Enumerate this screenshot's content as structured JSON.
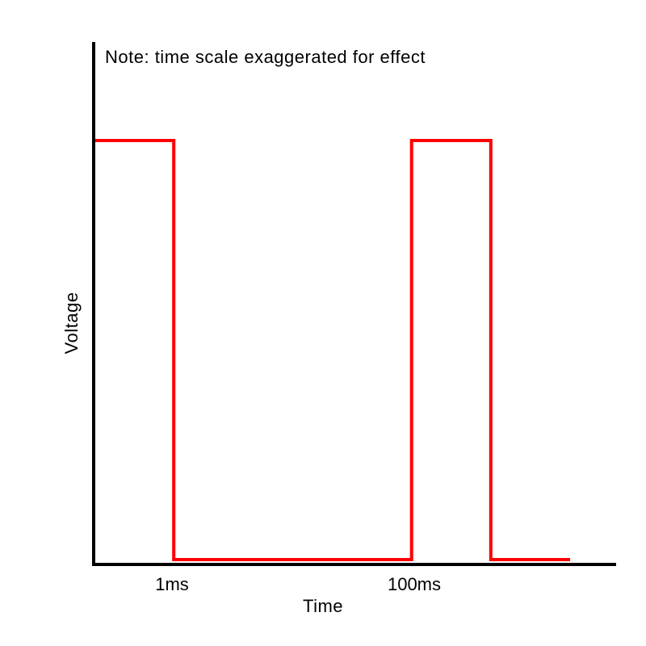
{
  "chart_data": {
    "type": "line",
    "title": "",
    "note": "Note: time scale exaggerated for effect",
    "xlabel": "Time",
    "ylabel": "Voltage",
    "x_ticks": [
      "1ms",
      "100ms"
    ],
    "series": [
      {
        "step": "hv",
        "color": "#ff0000",
        "points": [
          {
            "x": 0,
            "y": 1
          },
          {
            "x": 1,
            "y": 1
          },
          {
            "x": 1,
            "y": 0
          },
          {
            "x": 4,
            "y": 0
          },
          {
            "x": 4,
            "y": 1
          },
          {
            "x": 5,
            "y": 1
          },
          {
            "x": 5,
            "y": 0
          },
          {
            "x": 6,
            "y": 0
          }
        ]
      }
    ],
    "axis_color": "#000000",
    "grid": false
  }
}
